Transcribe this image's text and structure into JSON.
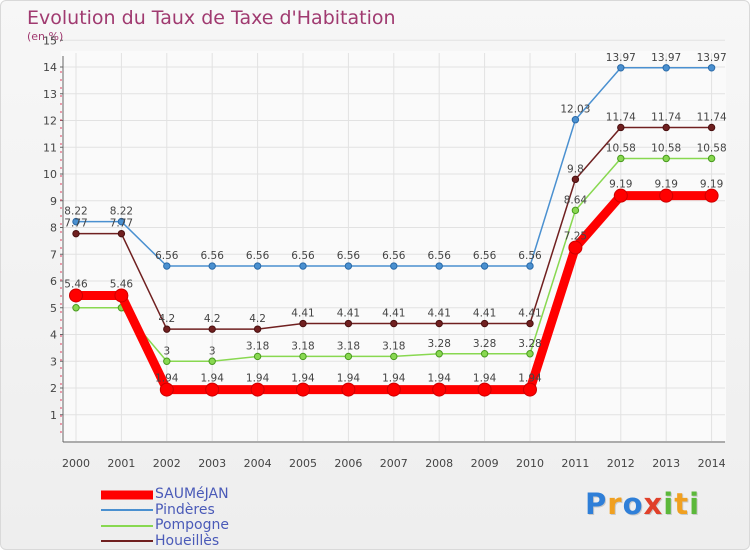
{
  "title": "Evolution du Taux de Taxe d'Habitation",
  "subtitle": "(en %)",
  "brand": {
    "letters": [
      {
        "ch": "P",
        "color": "#2f7fd8"
      },
      {
        "ch": "r",
        "color": "#f0a020"
      },
      {
        "ch": "o",
        "color": "#2f7fd8"
      },
      {
        "ch": "x",
        "color": "#e0402a"
      },
      {
        "ch": "i",
        "color": "#5bb83a"
      },
      {
        "ch": "t",
        "color": "#f0a020"
      },
      {
        "ch": "i",
        "color": "#5bb83a"
      }
    ]
  },
  "chart_data": {
    "type": "line",
    "title": "Evolution du Taux de Taxe d'Habitation",
    "subtitle": "(en %)",
    "ylim": [
      1,
      15
    ],
    "yticks": [
      1,
      2,
      3,
      4,
      5,
      6,
      7,
      8,
      9,
      10,
      11,
      12,
      13,
      14,
      15
    ],
    "grid": true,
    "legend_placement": "bottom-left",
    "x": [
      "2000",
      "2001",
      "2002",
      "2003",
      "2004",
      "2005",
      "2006",
      "2007",
      "2008",
      "2009",
      "2010",
      "2011",
      "2012",
      "2013",
      "2014"
    ],
    "series": [
      {
        "name": "SAUMéJAN",
        "color": "#ff0000",
        "values": [
          5.46,
          5.46,
          1.94,
          1.94,
          1.94,
          1.94,
          1.94,
          1.94,
          1.94,
          1.94,
          1.94,
          7.25,
          9.19,
          9.19,
          9.19
        ],
        "labels": [
          "5.46",
          "5.46",
          "1.94",
          "1.94",
          "1.94",
          "1.94",
          "1.94",
          "1.94",
          "1.94",
          "1.94",
          "1.94",
          "7.25",
          "9.19",
          "9.19",
          "9.19"
        ]
      },
      {
        "name": "Pindères",
        "color": "#4a90d0",
        "values": [
          8.22,
          8.22,
          6.56,
          6.56,
          6.56,
          6.56,
          6.56,
          6.56,
          6.56,
          6.56,
          6.56,
          12.03,
          13.97,
          13.97,
          13.97
        ],
        "labels": [
          "8.22",
          "8.22",
          "6.56",
          "6.56",
          "6.56",
          "6.56",
          "6.56",
          "6.56",
          "6.56",
          "6.56",
          "6.56",
          "12.03",
          "13.97",
          "13.97",
          "13.97"
        ]
      },
      {
        "name": "Pompogne",
        "color": "#88d850",
        "values": [
          5.0,
          5.0,
          3.0,
          3.0,
          3.18,
          3.18,
          3.18,
          3.18,
          3.28,
          3.28,
          3.28,
          8.64,
          10.58,
          10.58,
          10.58
        ],
        "labels": [
          "",
          "",
          "3",
          "3",
          "3.18",
          "3.18",
          "3.18",
          "3.18",
          "3.28",
          "3.28",
          "3.28",
          "8.64",
          "10.58",
          "10.58",
          "10.58"
        ]
      },
      {
        "name": "Houeillès",
        "color": "#702020",
        "values": [
          7.77,
          7.77,
          4.2,
          4.2,
          4.2,
          4.41,
          4.41,
          4.41,
          4.41,
          4.41,
          4.41,
          9.8,
          11.74,
          11.74,
          11.74
        ],
        "labels": [
          "7.77",
          "7.77",
          "4.2",
          "4.2",
          "4.2",
          "4.41",
          "4.41",
          "4.41",
          "4.41",
          "4.41",
          "4.41",
          "9.8",
          "11.74",
          "11.74",
          "11.74"
        ]
      }
    ]
  }
}
